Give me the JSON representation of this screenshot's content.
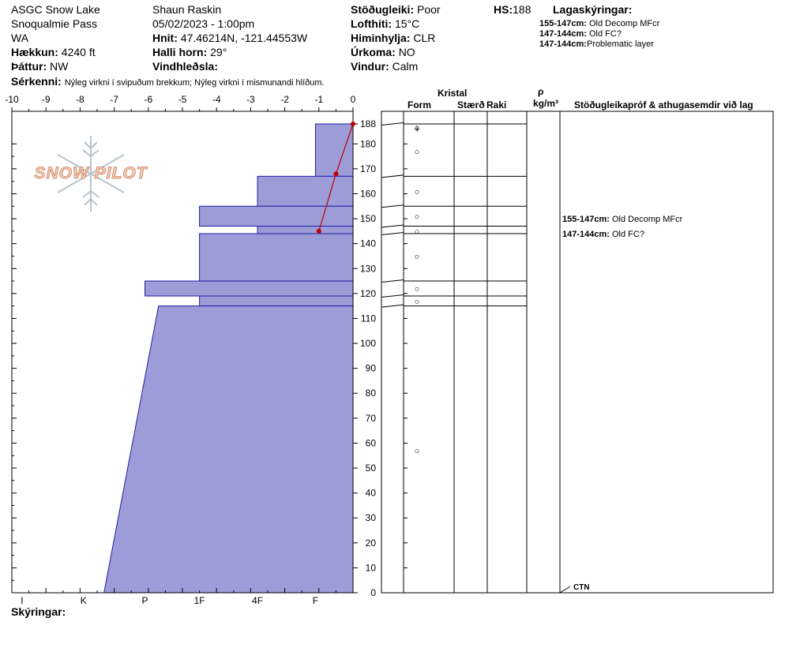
{
  "header": {
    "location": "ASGC Snow Lake",
    "area": "Snoqualmie Pass",
    "state": "WA",
    "elevation_label": "Hækkun:",
    "elevation_value": "4240 ft",
    "aspect_label": "Þáttur:",
    "aspect_value": "NW",
    "observer": "Shaun Raskin",
    "datetime": "05/02/2023 - 1:00pm",
    "coords_label": "Hnit:",
    "coords_value": "47.46214N, -121.44553W",
    "slope_label": "Halli horn:",
    "slope_value": "29°",
    "wind_loading_label": "Vindhleðsla:",
    "stability_label": "Stöðugleiki:",
    "stability_value": "Poor",
    "air_temp_label": "Lofthiti:",
    "air_temp_value": "15°C",
    "sky_label": "Himinhylja:",
    "sky_value": "CLR",
    "precip_label": "Úrkoma:",
    "precip_value": "NO",
    "wind_label": "Vindur:",
    "wind_value": "Calm",
    "hs_label": "HS:",
    "hs_value": "188",
    "layer_notes_title": "Lagaskýringar:",
    "layer_notes": [
      {
        "range": "155-147cm:",
        "text": "Old Decomp MFcr"
      },
      {
        "range": "147-144cm:",
        "text": "Old FC?"
      },
      {
        "range": "147-144cm:",
        "text": "Problematic layer"
      }
    ],
    "features_label": "Sérkenni:",
    "features_value": "Nýleg virkni í svipuðum brekkum; Nýleg virkni í mismunandi hlíðum."
  },
  "logo": {
    "text": "SNOW PILOT"
  },
  "columns": {
    "kristal": "Kristal",
    "form": "Form",
    "staerd": "Stærð",
    "raki": "Raki",
    "rho": "ρ",
    "density_unit": "kg/m³",
    "tests_title": "Stöðugleikapróf & athugasemdir við lag"
  },
  "right_notes": [
    {
      "range": "155-147cm:",
      "text": "Old Decomp MFcr",
      "depth": 150
    },
    {
      "range": "147-144cm:",
      "text": "Old FC?",
      "depth": 144
    }
  ],
  "test_marker": {
    "text": "CTN",
    "depth": 0
  },
  "footer": {
    "notes_label": "Skýringar:"
  },
  "colors": {
    "hardness_fill": "#9c9cd8",
    "hardness_stroke": "#2020a0",
    "temp_line": "#c00000",
    "logo": "#e8a080"
  },
  "chart_data": {
    "type": "snow_profile",
    "temp_axis": {
      "ticks": [
        "-10",
        "-9",
        "-8",
        "-7",
        "-6",
        "-5",
        "-4",
        "-3",
        "-2",
        "-1",
        "0"
      ],
      "range": [
        -10,
        0
      ]
    },
    "hardness_axis": {
      "labels": [
        "I",
        "K",
        "P",
        "1F",
        "4F",
        "F"
      ]
    },
    "depth_axis": {
      "range": [
        0,
        188
      ],
      "ticks": [
        "188",
        "180",
        "170",
        "160",
        "150",
        "140",
        "130",
        "120",
        "110",
        "100",
        "90",
        "80",
        "70",
        "60",
        "50",
        "40",
        "30",
        "20",
        "10",
        "0"
      ]
    },
    "temperature_profile": [
      {
        "depth": 188,
        "temp": 0
      },
      {
        "depth": 168,
        "temp": -0.5
      },
      {
        "depth": 145,
        "temp": -1
      }
    ],
    "layers": [
      {
        "top": 188,
        "bottom": 167,
        "hardness": 1.1
      },
      {
        "top": 167,
        "bottom": 155,
        "hardness": 2.8
      },
      {
        "top": 155,
        "bottom": 147,
        "hardness": 4.5
      },
      {
        "top": 147,
        "bottom": 144,
        "hardness": 2.8
      },
      {
        "top": 144,
        "bottom": 125,
        "hardness": 4.5
      },
      {
        "top": 125,
        "bottom": 119,
        "hardness": 6.1
      },
      {
        "top": 119,
        "bottom": 115,
        "hardness": 4.5
      },
      {
        "top": 115,
        "bottom": 0,
        "hardness_top": 5.7,
        "hardness_bottom": 7.3
      }
    ],
    "layer_boundaries": [
      188,
      167,
      155,
      147,
      144,
      125,
      119,
      115,
      0
    ],
    "grain_symbols": [
      {
        "depth": 186,
        "symbol": "⚘"
      },
      {
        "depth": 177,
        "symbol": "○"
      },
      {
        "depth": 161,
        "symbol": "○"
      },
      {
        "depth": 151,
        "symbol": "○"
      },
      {
        "depth": 145,
        "symbol": "○"
      },
      {
        "depth": 135,
        "symbol": "○"
      },
      {
        "depth": 122,
        "symbol": "○"
      },
      {
        "depth": 117,
        "symbol": "○"
      },
      {
        "depth": 57,
        "symbol": "○"
      }
    ]
  }
}
